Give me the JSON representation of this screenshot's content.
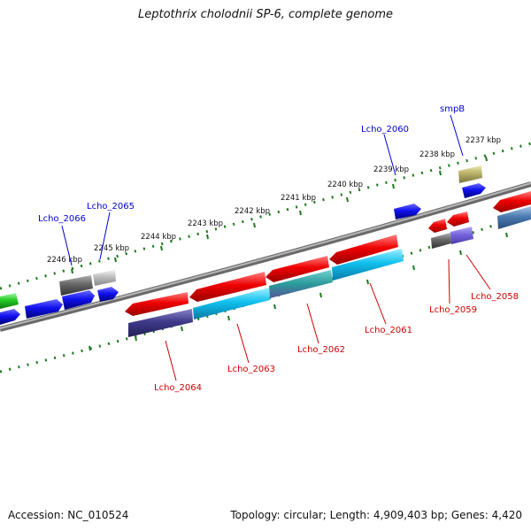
{
  "title": "Leptothrix cholodnii SP-6, complete genome",
  "footer": {
    "accession": "Accession: NC_010524",
    "summary": "Topology: circular; Length: 4,909,403 bp; Genes: 4,420"
  },
  "colors": {
    "backbone": "#8a8a8a",
    "tick": "#1f7a1f",
    "forward_label": "#0000cc",
    "reverse_label": "#cc0000"
  },
  "scale_labels": [
    "2246 kbp",
    "2245 kbp",
    "2244 kbp",
    "2243 kbp",
    "2242 kbp",
    "2241 kbp",
    "2240 kbp",
    "2239 kbp",
    "2238 kbp",
    "2237 kbp"
  ],
  "gene_labels": {
    "forward": [
      "Lcho_2066",
      "Lcho_2065",
      "Lcho_2060",
      "smpB"
    ],
    "reverse": [
      "Lcho_2064",
      "Lcho_2063",
      "Lcho_2062",
      "Lcho_2061",
      "Lcho_2059",
      "Lcho_2058"
    ]
  }
}
